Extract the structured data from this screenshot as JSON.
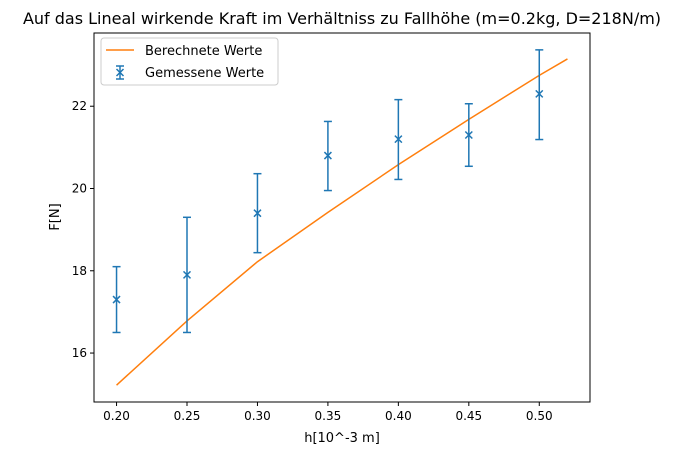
{
  "chart_data": {
    "type": "line",
    "title": "Auf das Lineal wirkende Kraft im Verhältniss zu Fallhöhe (m=0.2kg, D=218N/m)",
    "xlabel": "h[10^-3 m]",
    "ylabel": "F[N]",
    "xlim": [
      0.184,
      0.536
    ],
    "ylim": [
      14.81,
      23.78
    ],
    "xticks": [
      "0.20",
      "0.25",
      "0.30",
      "0.35",
      "0.40",
      "0.45",
      "0.50"
    ],
    "yticks": [
      "16",
      "18",
      "20",
      "22"
    ],
    "grid": false,
    "legend_placement": "top-left",
    "series": [
      {
        "name": "Berechnete Werte",
        "kind": "line",
        "color": "#ff7f0e",
        "x": [
          0.2,
          0.25,
          0.3,
          0.35,
          0.4,
          0.45,
          0.5,
          0.52
        ],
        "y": [
          15.22,
          16.78,
          18.22,
          19.42,
          20.58,
          21.68,
          22.75,
          23.15
        ]
      },
      {
        "name": "Gemessene Werte",
        "kind": "errorbar",
        "marker": "x",
        "color": "#1f77b4",
        "x": [
          0.2,
          0.25,
          0.3,
          0.35,
          0.4,
          0.45,
          0.5
        ],
        "y": [
          17.3,
          17.9,
          19.4,
          20.8,
          21.2,
          21.3,
          22.3
        ],
        "y_low": [
          16.5,
          16.5,
          18.44,
          19.95,
          20.22,
          20.54,
          21.19
        ],
        "y_high": [
          18.1,
          19.3,
          20.36,
          21.63,
          22.16,
          22.06,
          23.37
        ]
      }
    ]
  }
}
